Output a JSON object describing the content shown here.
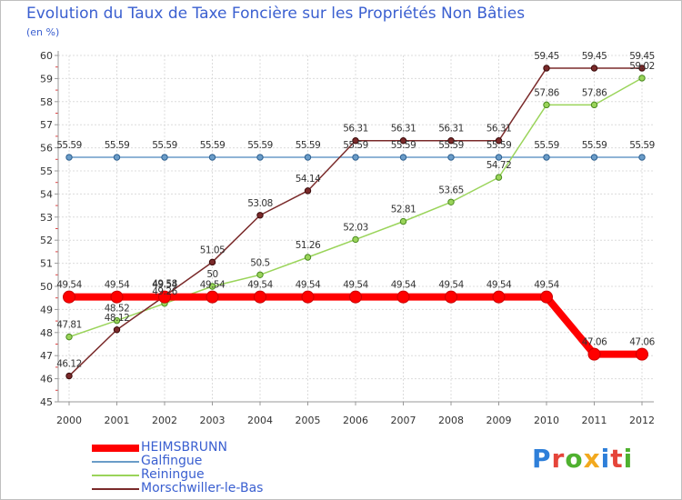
{
  "header": {
    "title": "Evolution du Taux de Taxe Foncière sur les Propriétés Non Bâties",
    "unit": "(en %)"
  },
  "brand": {
    "letters": [
      "P",
      "r",
      "o",
      "x",
      "i",
      "t",
      "i"
    ],
    "colors": [
      "#2e7fd9",
      "#e5453a",
      "#4fb12f",
      "#f2a91f",
      "#2e7fd9",
      "#e5453a",
      "#4fb12f"
    ]
  },
  "chart_data": {
    "type": "line",
    "title": "Evolution du Taux de Taxe Foncière sur les Propriétés Non Bâties",
    "ylabel": "(en %)",
    "xlabel": "",
    "ylim": [
      45,
      60
    ],
    "yticks": [
      45,
      46,
      47,
      48,
      49,
      50,
      51,
      52,
      53,
      54,
      55,
      56,
      57,
      58,
      59,
      60
    ],
    "categories": [
      "2000",
      "2001",
      "2002",
      "2003",
      "2004",
      "2005",
      "2006",
      "2007",
      "2008",
      "2009",
      "2010",
      "2011",
      "2012"
    ],
    "grid": true,
    "legend": "bottom-left",
    "series": [
      {
        "name": "HEIMSBRUNN",
        "color": "#ff0000",
        "values": [
          49.54,
          49.54,
          49.54,
          49.54,
          49.54,
          49.54,
          49.54,
          49.54,
          49.54,
          49.54,
          49.54,
          47.06,
          47.06
        ],
        "labels": [
          "49.54",
          "49.54",
          "49.54",
          "49.54",
          "49.54",
          "49.54",
          "49.54",
          "49.54",
          "49.54",
          "49.54",
          "49.54",
          "47.06",
          "47.06"
        ]
      },
      {
        "name": "Galfingue",
        "color": "#6a9cc8",
        "values": [
          55.59,
          55.59,
          55.59,
          55.59,
          55.59,
          55.59,
          55.59,
          55.59,
          55.59,
          55.59,
          55.59,
          55.59,
          55.59
        ],
        "labels": [
          "55.59",
          "55.59",
          "55.59",
          "55.59",
          "55.59",
          "55.59",
          "55.59",
          "55.59",
          "55.59",
          "55.59",
          "55.59",
          "55.59",
          "55.59"
        ]
      },
      {
        "name": "Reiningue",
        "color": "#9ad45a",
        "values": [
          47.81,
          48.52,
          49.26,
          50,
          50.5,
          51.26,
          52.03,
          52.81,
          53.65,
          54.72,
          57.86,
          57.86,
          59.02
        ],
        "labels": [
          "47.81",
          "48.52",
          "49.26",
          "50",
          "50.5",
          "51.26",
          "52.03",
          "52.81",
          "53.65",
          "54.72",
          "57.86",
          "57.86",
          "59.02"
        ]
      },
      {
        "name": "Morschwiller-le-Bas",
        "color": "#7a2a2a",
        "values": [
          46.12,
          48.12,
          49.58,
          51.05,
          53.08,
          54.14,
          56.31,
          56.31,
          56.31,
          56.31,
          59.45,
          59.45,
          59.45
        ],
        "labels": [
          "46.12",
          "48.12",
          "49.58",
          "51.05",
          "53.08",
          "54.14",
          "56.31",
          "56.31",
          "56.31",
          "56.31",
          "59.45",
          "59.45",
          "59.45"
        ]
      }
    ]
  }
}
